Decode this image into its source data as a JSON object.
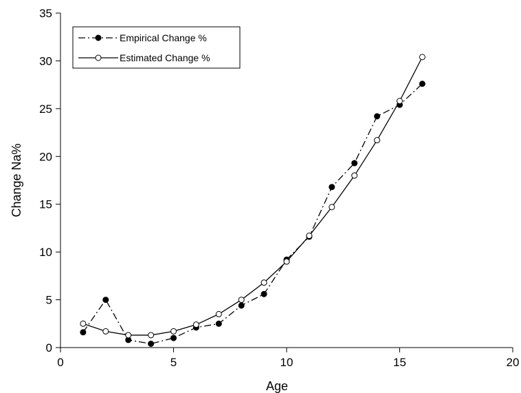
{
  "chart_data": {
    "type": "line",
    "title": "",
    "xlabel": "Age",
    "ylabel": "Change Na%",
    "xlim": [
      0,
      20
    ],
    "ylim": [
      0,
      35
    ],
    "xticks": [
      "0",
      "5",
      "10",
      "15",
      "20"
    ],
    "yticks": [
      "0",
      "5",
      "10",
      "15",
      "20",
      "25",
      "30",
      "35"
    ],
    "grid": false,
    "legend_position": "top-left",
    "series": [
      {
        "name": "Empirical Change %",
        "style": "dash-dot",
        "marker": "filled-circle",
        "color": "#000000",
        "x": [
          1,
          2,
          3,
          4,
          5,
          6,
          7,
          8,
          9,
          10,
          11,
          12,
          13,
          14,
          15,
          16
        ],
        "y": [
          1.6,
          5.0,
          0.8,
          0.4,
          1.0,
          2.1,
          2.5,
          4.4,
          5.6,
          9.2,
          11.6,
          16.8,
          19.3,
          24.2,
          25.4,
          27.6
        ]
      },
      {
        "name": "Estimated Change %",
        "style": "solid",
        "marker": "open-circle",
        "color": "#000000",
        "x": [
          1,
          2,
          3,
          4,
          5,
          6,
          7,
          8,
          9,
          10,
          11,
          12,
          13,
          14,
          15,
          16
        ],
        "y": [
          2.5,
          1.7,
          1.3,
          1.3,
          1.7,
          2.4,
          3.5,
          5.0,
          6.8,
          9.0,
          11.7,
          14.7,
          18.0,
          21.7,
          25.8,
          30.4
        ]
      }
    ]
  }
}
